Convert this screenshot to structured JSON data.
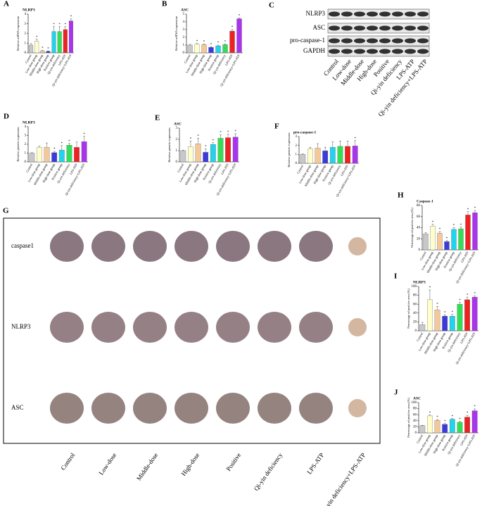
{
  "chart_data": [
    {
      "type": "bar",
      "panel": "A",
      "title": "NLRP3",
      "ylabel": "Relative mRNA expression",
      "categories": [
        "Control",
        "Low-dose group",
        "Middle-dose group",
        "High-dose group",
        "Positive group",
        "Qi-yin deficiency",
        "LPS-ATP",
        "Qi-yin deficiency+LPS-ATP"
      ],
      "values": [
        0.8,
        1.2,
        0.2,
        0.15,
        2.2,
        2.2,
        2.4,
        3.3
      ],
      "errors": [
        0.15,
        0.2,
        0.05,
        0.05,
        0.5,
        0.5,
        0.3,
        0.2
      ],
      "annotations": [
        null,
        "*",
        "*",
        "*",
        "*",
        "*",
        "*",
        "*"
      ],
      "colors": [
        "#c8c8c8",
        "#ffffcc",
        "#f5c89a",
        "#3b3bdc",
        "#22d3ee",
        "#33dd55",
        "#ee2222",
        "#aa33ee"
      ],
      "ylim": [
        0,
        4
      ],
      "yticks": [
        0,
        1,
        2,
        3,
        4
      ]
    },
    {
      "type": "bar",
      "panel": "B",
      "title": "ASC",
      "ylabel": "Relative mRNA expression",
      "categories": [
        "Control",
        "Low-dose group",
        "Middle-dose group",
        "High-dose group",
        "Positive group",
        "Qi-yin deficiency",
        "LPS-ATP",
        "Qi-yin deficiency+LPS-ATP"
      ],
      "values": [
        1.0,
        1.1,
        1.05,
        0.7,
        0.9,
        1.05,
        2.8,
        4.4
      ],
      "errors": [
        0.1,
        0.1,
        0.1,
        0.1,
        0.1,
        0.1,
        0.2,
        0.1
      ],
      "annotations": [
        null,
        "*",
        "*",
        "*",
        "*",
        "*",
        "*",
        "*"
      ],
      "colors": [
        "#c8c8c8",
        "#ffffcc",
        "#f5c89a",
        "#3b3bdc",
        "#22d3ee",
        "#33dd55",
        "#ee2222",
        "#aa33ee"
      ],
      "ylim": [
        0,
        5
      ],
      "yticks": [
        0,
        1,
        2,
        3,
        4,
        5
      ]
    },
    {
      "type": "bar",
      "panel": "D",
      "title": "NLRP3",
      "ylabel": "Relative protein expression",
      "categories": [
        "Control",
        "Low-dose group",
        "Middle-dose group",
        "High-dose group",
        "Positive group",
        "Qi-yin deficiency",
        "LPS-ATP",
        "Qi-yin deficiency+LPS-ATP"
      ],
      "values": [
        1.0,
        1.65,
        1.65,
        1.05,
        1.35,
        1.9,
        1.65,
        2.3
      ],
      "errors": [
        0.05,
        0.15,
        0.5,
        0.15,
        0.5,
        0.2,
        0.6,
        0.6
      ],
      "annotations": [
        null,
        null,
        null,
        "*",
        "*",
        "*",
        null,
        "*"
      ],
      "colors": [
        "#c8c8c8",
        "#ffffcc",
        "#f5c89a",
        "#3b3bdc",
        "#22d3ee",
        "#33dd55",
        "#ee2222",
        "#aa33ee"
      ],
      "ylim": [
        0,
        4
      ],
      "yticks": [
        0,
        1,
        2,
        3,
        4
      ]
    },
    {
      "type": "bar",
      "panel": "E",
      "title": "ASC",
      "ylabel": "Relative protein expression",
      "categories": [
        "Control",
        "Low-dose group",
        "Middle-dose group",
        "High-dose group",
        "Positive group",
        "Qi-yin deficiency",
        "LPS-ATP",
        "Qi-yin deficiency+LPS-ATP"
      ],
      "values": [
        1.0,
        1.35,
        1.6,
        0.85,
        1.55,
        2.1,
        2.15,
        2.2
      ],
      "errors": [
        0.05,
        0.5,
        0.5,
        0.3,
        0.15,
        0.3,
        0.3,
        0.3
      ],
      "annotations": [
        null,
        "*",
        "*",
        "*",
        "*",
        "*",
        "*",
        "*"
      ],
      "colors": [
        "#c8c8c8",
        "#ffffcc",
        "#f5c89a",
        "#3b3bdc",
        "#22d3ee",
        "#33dd55",
        "#ee2222",
        "#aa33ee"
      ],
      "ylim": [
        0,
        3
      ],
      "yticks": [
        0,
        1,
        2,
        3
      ]
    },
    {
      "type": "bar",
      "panel": "F",
      "title": "pro-caspase-1",
      "ylabel": "Relative protein expression",
      "categories": [
        "Control",
        "Low-dose group",
        "Middle-dose group",
        "High-dose group",
        "Positive group",
        "Qi-yin deficiency",
        "LPS-ATP",
        "Qi-yin deficiency+LPS-ATP"
      ],
      "values": [
        1.0,
        1.6,
        1.7,
        1.4,
        1.8,
        1.9,
        1.9,
        1.95
      ],
      "errors": [
        0.05,
        0.2,
        0.5,
        0.4,
        0.6,
        0.6,
        0.6,
        0.6
      ],
      "annotations": [
        null,
        null,
        null,
        null,
        null,
        null,
        null,
        "*"
      ],
      "colors": [
        "#c8c8c8",
        "#ffffcc",
        "#f5c89a",
        "#3b3bdc",
        "#22d3ee",
        "#33dd55",
        "#ee2222",
        "#aa33ee"
      ],
      "ylim": [
        0,
        3
      ],
      "yticks": [
        0,
        1,
        2,
        3
      ]
    },
    {
      "type": "bar",
      "panel": "H",
      "title": "Caspase-1",
      "ylabel": "Percentage of positive area (%)",
      "categories": [
        "Control",
        "Low-dose group",
        "Middle-dose group",
        "High-dose group",
        "Positive group",
        "Qi-yin deficiency",
        "LPS-ATP",
        "Qi-yin deficiency+LPS-ATP"
      ],
      "values": [
        29,
        43,
        30,
        15,
        37,
        38,
        63,
        67
      ],
      "errors": [
        2,
        3,
        3,
        2,
        3,
        3,
        6,
        4
      ],
      "annotations": [
        null,
        "*",
        "*",
        "*",
        "*",
        "*",
        "*",
        "*"
      ],
      "colors": [
        "#c8c8c8",
        "#ffffcc",
        "#f5c89a",
        "#3b3bdc",
        "#22d3ee",
        "#33dd55",
        "#ee2222",
        "#aa33ee"
      ],
      "ylim": [
        0,
        80
      ],
      "yticks": [
        0,
        20,
        40,
        60,
        80
      ]
    },
    {
      "type": "bar",
      "panel": "I",
      "title": "NLRP3",
      "ylabel": "Percentage of positive area (%)",
      "categories": [
        "Control",
        "Low-dose group",
        "Middle-dose group",
        "High-dose group",
        "Positive group",
        "Qi-yin deficiency",
        "LPS-ATP",
        "Qi-yin deficiency+LPS-ATP"
      ],
      "values": [
        14,
        70,
        47,
        33,
        33,
        60,
        70,
        76
      ],
      "errors": [
        5,
        22,
        8,
        3,
        4,
        4,
        6,
        3
      ],
      "annotations": [
        null,
        "*",
        "*",
        "*",
        "*",
        "*",
        "*",
        "*"
      ],
      "colors": [
        "#c8c8c8",
        "#ffffcc",
        "#f5c89a",
        "#3b3bdc",
        "#22d3ee",
        "#33dd55",
        "#ee2222",
        "#aa33ee"
      ],
      "ylim": [
        0,
        100
      ],
      "yticks": [
        0,
        20,
        40,
        60,
        80,
        100
      ]
    },
    {
      "type": "bar",
      "panel": "J",
      "title": "ASC",
      "ylabel": "Percentage of positive area (%)",
      "categories": [
        "Control",
        "Low-dose group",
        "Middle-dose group",
        "High-dose group",
        "Positive group",
        "Qi-yin deficiency",
        "LPS-ATP",
        "Qi-yin deficiency+LPS-ATP"
      ],
      "values": [
        24,
        56,
        41,
        28,
        45,
        35,
        52,
        73
      ],
      "errors": [
        1,
        3,
        3,
        3,
        2,
        3,
        6,
        6
      ],
      "annotations": [
        null,
        "*",
        "*",
        "*",
        "*",
        "*",
        "*",
        "*"
      ],
      "colors": [
        "#c8c8c8",
        "#ffffcc",
        "#f5c89a",
        "#3b3bdc",
        "#22d3ee",
        "#33dd55",
        "#ee2222",
        "#aa33ee"
      ],
      "ylim": [
        0,
        100
      ],
      "yticks": [
        0,
        20,
        40,
        60,
        80,
        100
      ]
    }
  ],
  "blot": {
    "panel": "C",
    "rows": [
      "NLRP3",
      "ASC",
      "pro-caspase-1",
      "GAPDH"
    ],
    "columns": [
      "Control",
      "Low-dose",
      "Middle-dose",
      "High-dose",
      "Positive",
      "Qi-yin deficiency",
      "LPS-ATP",
      "Qi-yin deficiency+LPS-ATP"
    ]
  },
  "tissue": {
    "panel": "G",
    "rows": [
      "caspase1",
      "NLRP3",
      "ASC"
    ],
    "columns": [
      "Control",
      "Low-dose",
      "Middle-dose",
      "High-dose",
      "Positive",
      "Qi-yin deficiency",
      "LPS-ATP",
      "Qi-yin deficiency+LPS-ATP"
    ]
  }
}
